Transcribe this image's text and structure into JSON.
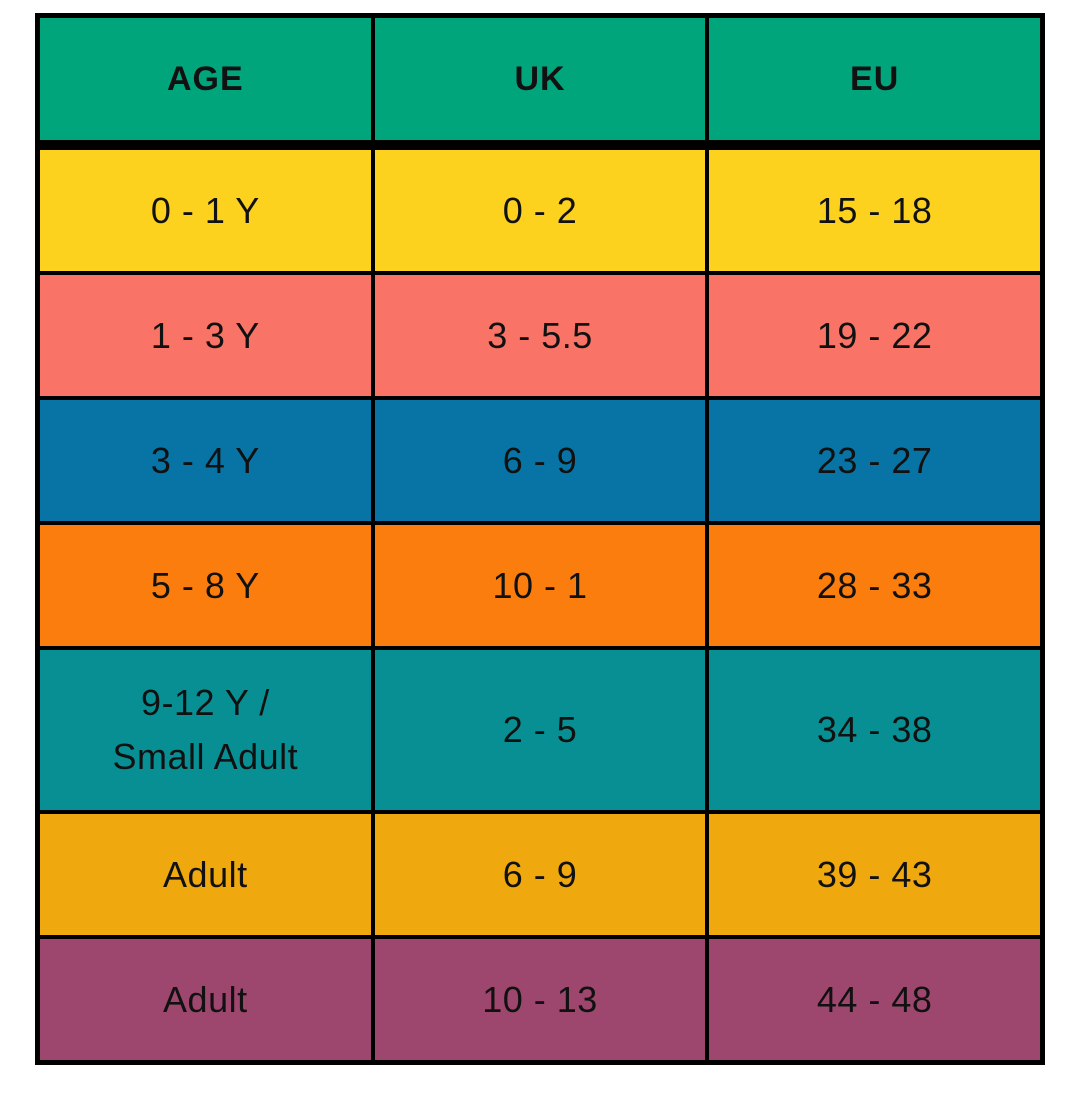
{
  "page": {
    "background": "#FFFFFF",
    "grid_color": "#000000",
    "text_color": "#111111"
  },
  "chart_data": {
    "type": "table",
    "title": "",
    "columns": [
      "AGE",
      "UK",
      "EU"
    ],
    "rows": [
      [
        "0 - 1 Y",
        "0 - 2",
        "15 - 18"
      ],
      [
        "1 - 3 Y",
        "3 - 5.5",
        "19 - 22"
      ],
      [
        "3 - 4 Y",
        "6 - 9",
        "23 - 27"
      ],
      [
        "5 - 8 Y",
        "10 - 1",
        "28 - 33"
      ],
      [
        "9-12 Y /\nSmall Adult",
        "2 - 5",
        "34 - 38"
      ],
      [
        "Adult",
        "6 - 9",
        "39 - 43"
      ],
      [
        "Adult",
        "10 - 13",
        "44 - 48"
      ]
    ],
    "header_color": "#00A57C",
    "row_colors": [
      "#FDD21E",
      "#F97466",
      "#0874A6",
      "#FA7D0E",
      "#088F93",
      "#EFA80D",
      "#9E476E"
    ],
    "layout": {
      "legend": "none",
      "grid": "solid black separators, thicker rule under header"
    }
  }
}
